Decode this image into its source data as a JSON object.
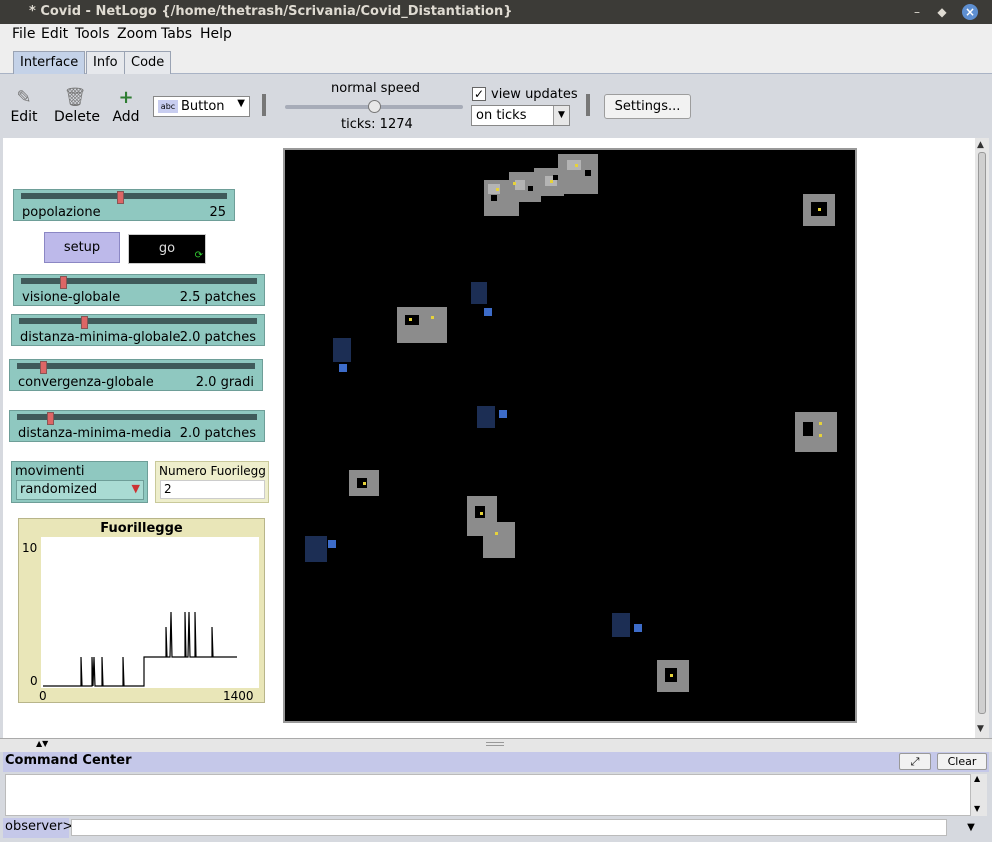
{
  "window": {
    "title": "* Covid - NetLogo {/home/thetrash/Scrivania/Covid_Distantiation}",
    "controls": {
      "minimize": "–",
      "maximize": "◆",
      "close": "×"
    }
  },
  "menu": [
    "File",
    "Edit",
    "Tools",
    "Zoom",
    "Tabs",
    "Help"
  ],
  "tabs": [
    "Interface",
    "Info",
    "Code"
  ],
  "toolbar": {
    "edit_label": "Edit",
    "delete_label": "Delete",
    "add_label": "Add",
    "widget_type": "Button",
    "widget_type_icon": "abc",
    "speed_label": "normal speed",
    "speed_fraction": 0.5,
    "ticks_label": "ticks: 1274",
    "view_updates_label": "view updates",
    "view_updates_checked": true,
    "update_mode": "on ticks",
    "settings_label": "Settings..."
  },
  "widgets": {
    "popolazione": {
      "name": "popolazione",
      "value": "25",
      "fraction": 0.48
    },
    "setup_label": "setup",
    "go_label": "go",
    "forever_icon": "⟳",
    "visione": {
      "name": "visione-globale",
      "value": "2.5 patches",
      "fraction": 0.17
    },
    "distanza": {
      "name": "distanza-minima-globale",
      "value": "2.0 patches",
      "fraction": 0.27
    },
    "convergenza": {
      "name": "convergenza-globale",
      "value": "2.0 gradi",
      "fraction": 0.1
    },
    "media": {
      "name": "distanza-minima-media",
      "value": "2.0 patches",
      "fraction": 0.13
    },
    "movimenti": {
      "name": "movimenti",
      "value": "randomized"
    },
    "numero": {
      "name": "Numero Fuorilegge",
      "display_name": "Numero Fuorilegg...",
      "value": "2"
    }
  },
  "plot": {
    "title": "Fuorillegge",
    "ymax_label": "10",
    "ymin_label": "0",
    "xmin_label": "0",
    "xmax_label": "1400"
  },
  "command_center": {
    "title": "Command Center",
    "clear_label": "Clear",
    "observer_label": "observer>"
  },
  "colors": {
    "slider": "#8fc8c0",
    "button": "#bdb9ea",
    "plot": "#e9e6b8",
    "blue_turtle": "#1c2e54",
    "blue_square": "#3d6cc9"
  }
}
